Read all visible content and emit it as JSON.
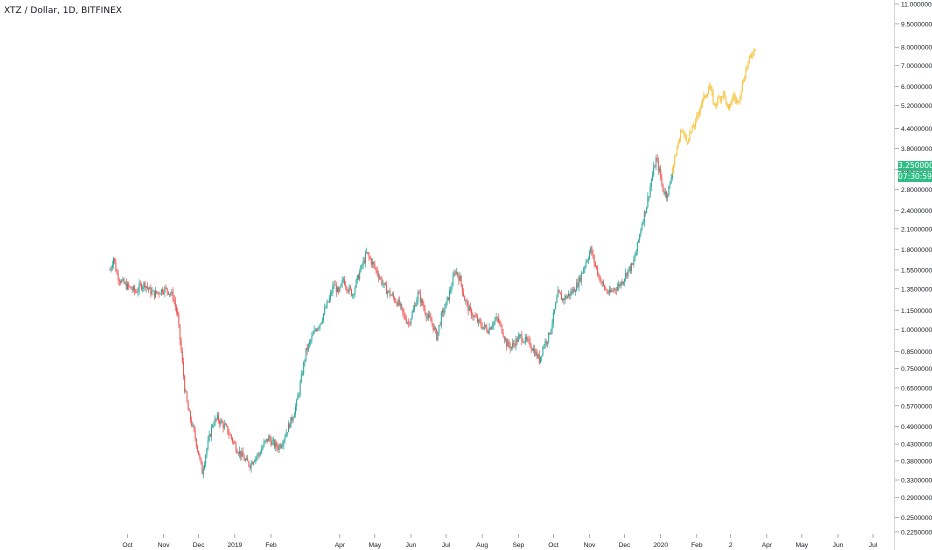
{
  "chart_data": {
    "type": "candlestick",
    "title": "XTZ / Dollar, 1D, BITFINEX",
    "y_scale": "log",
    "y_ticks": [
      0.225,
      0.25,
      0.29,
      0.33,
      0.38,
      0.43,
      0.49,
      0.57,
      0.65,
      0.75,
      0.85,
      1.0,
      1.15,
      1.35,
      1.55,
      1.8,
      2.1,
      2.4,
      2.8,
      3.25,
      3.8,
      4.4,
      5.2,
      6.0,
      7.0,
      8.0,
      9.5,
      11.0
    ],
    "y_tick_labels": [
      "0.22500000",
      "0.25000000",
      "0.29000000",
      "0.33000000",
      "0.38000000",
      "0.43000000",
      "0.49000000",
      "0.57000000",
      "0.65000000",
      "0.75000000",
      "0.85000000",
      "1.00000000",
      "1.15000000",
      "1.35000000",
      "1.55000000",
      "1.80000000",
      "2.10000000",
      "2.40000000",
      "2.80000000",
      "3.25000000",
      "3.80000000",
      "4.40000000",
      "5.20000000",
      "6.00000000",
      "7.00000000",
      "8.00000000",
      "9.50000000",
      "11.00000000"
    ],
    "x_ticks": [
      "Oct",
      "Nov",
      "Dec",
      "2019",
      "Feb",
      "Apr",
      "May",
      "Jun",
      "Jul",
      "Aug",
      "Sep",
      "Oct",
      "Nov",
      "Dec",
      "2020",
      "Feb",
      "2",
      "Apr",
      "May",
      "Jun",
      "Jul"
    ],
    "x_tick_days": [
      15,
      46,
      76,
      107,
      138,
      197,
      227,
      258,
      288,
      319,
      350,
      380,
      411,
      441,
      472,
      503,
      532,
      563,
      593,
      624,
      654
    ],
    "price_series": [
      {
        "d": 0,
        "v": 1.55
      },
      {
        "d": 3,
        "v": 1.7
      },
      {
        "d": 6,
        "v": 1.5
      },
      {
        "d": 10,
        "v": 1.42
      },
      {
        "d": 14,
        "v": 1.38
      },
      {
        "d": 18,
        "v": 1.35
      },
      {
        "d": 22,
        "v": 1.32
      },
      {
        "d": 26,
        "v": 1.38
      },
      {
        "d": 30,
        "v": 1.4
      },
      {
        "d": 34,
        "v": 1.33
      },
      {
        "d": 38,
        "v": 1.3
      },
      {
        "d": 42,
        "v": 1.32
      },
      {
        "d": 46,
        "v": 1.35
      },
      {
        "d": 50,
        "v": 1.33
      },
      {
        "d": 54,
        "v": 1.28
      },
      {
        "d": 58,
        "v": 1.1
      },
      {
        "d": 61,
        "v": 0.85
      },
      {
        "d": 64,
        "v": 0.65
      },
      {
        "d": 67,
        "v": 0.55
      },
      {
        "d": 70,
        "v": 0.5
      },
      {
        "d": 73,
        "v": 0.45
      },
      {
        "d": 76,
        "v": 0.4
      },
      {
        "d": 79,
        "v": 0.35
      },
      {
        "d": 82,
        "v": 0.4
      },
      {
        "d": 85,
        "v": 0.45
      },
      {
        "d": 88,
        "v": 0.5
      },
      {
        "d": 92,
        "v": 0.52
      },
      {
        "d": 96,
        "v": 0.5
      },
      {
        "d": 100,
        "v": 0.48
      },
      {
        "d": 104,
        "v": 0.45
      },
      {
        "d": 108,
        "v": 0.42
      },
      {
        "d": 112,
        "v": 0.4
      },
      {
        "d": 116,
        "v": 0.38
      },
      {
        "d": 120,
        "v": 0.37
      },
      {
        "d": 124,
        "v": 0.39
      },
      {
        "d": 128,
        "v": 0.4
      },
      {
        "d": 132,
        "v": 0.43
      },
      {
        "d": 136,
        "v": 0.45
      },
      {
        "d": 140,
        "v": 0.43
      },
      {
        "d": 144,
        "v": 0.42
      },
      {
        "d": 148,
        "v": 0.44
      },
      {
        "d": 152,
        "v": 0.48
      },
      {
        "d": 156,
        "v": 0.52
      },
      {
        "d": 160,
        "v": 0.58
      },
      {
        "d": 164,
        "v": 0.7
      },
      {
        "d": 168,
        "v": 0.85
      },
      {
        "d": 172,
        "v": 0.92
      },
      {
        "d": 176,
        "v": 1.0
      },
      {
        "d": 180,
        "v": 1.05
      },
      {
        "d": 184,
        "v": 1.15
      },
      {
        "d": 188,
        "v": 1.25
      },
      {
        "d": 192,
        "v": 1.4
      },
      {
        "d": 196,
        "v": 1.3
      },
      {
        "d": 200,
        "v": 1.45
      },
      {
        "d": 204,
        "v": 1.35
      },
      {
        "d": 208,
        "v": 1.3
      },
      {
        "d": 212,
        "v": 1.45
      },
      {
        "d": 216,
        "v": 1.6
      },
      {
        "d": 220,
        "v": 1.75
      },
      {
        "d": 224,
        "v": 1.65
      },
      {
        "d": 228,
        "v": 1.55
      },
      {
        "d": 232,
        "v": 1.45
      },
      {
        "d": 236,
        "v": 1.35
      },
      {
        "d": 240,
        "v": 1.3
      },
      {
        "d": 244,
        "v": 1.25
      },
      {
        "d": 248,
        "v": 1.2
      },
      {
        "d": 252,
        "v": 1.1
      },
      {
        "d": 256,
        "v": 1.05
      },
      {
        "d": 260,
        "v": 1.15
      },
      {
        "d": 264,
        "v": 1.3
      },
      {
        "d": 268,
        "v": 1.2
      },
      {
        "d": 272,
        "v": 1.1
      },
      {
        "d": 276,
        "v": 1.05
      },
      {
        "d": 280,
        "v": 0.95
      },
      {
        "d": 284,
        "v": 1.1
      },
      {
        "d": 288,
        "v": 1.2
      },
      {
        "d": 292,
        "v": 1.35
      },
      {
        "d": 296,
        "v": 1.55
      },
      {
        "d": 300,
        "v": 1.45
      },
      {
        "d": 304,
        "v": 1.25
      },
      {
        "d": 308,
        "v": 1.15
      },
      {
        "d": 312,
        "v": 1.1
      },
      {
        "d": 316,
        "v": 1.05
      },
      {
        "d": 320,
        "v": 1.02
      },
      {
        "d": 324,
        "v": 1.0
      },
      {
        "d": 328,
        "v": 1.05
      },
      {
        "d": 332,
        "v": 1.08
      },
      {
        "d": 336,
        "v": 1.0
      },
      {
        "d": 340,
        "v": 0.9
      },
      {
        "d": 344,
        "v": 0.88
      },
      {
        "d": 348,
        "v": 0.92
      },
      {
        "d": 352,
        "v": 0.95
      },
      {
        "d": 356,
        "v": 0.92
      },
      {
        "d": 360,
        "v": 0.9
      },
      {
        "d": 364,
        "v": 0.85
      },
      {
        "d": 368,
        "v": 0.8
      },
      {
        "d": 372,
        "v": 0.9
      },
      {
        "d": 376,
        "v": 0.95
      },
      {
        "d": 380,
        "v": 1.1
      },
      {
        "d": 384,
        "v": 1.3
      },
      {
        "d": 388,
        "v": 1.25
      },
      {
        "d": 392,
        "v": 1.28
      },
      {
        "d": 396,
        "v": 1.32
      },
      {
        "d": 400,
        "v": 1.38
      },
      {
        "d": 404,
        "v": 1.5
      },
      {
        "d": 408,
        "v": 1.65
      },
      {
        "d": 412,
        "v": 1.8
      },
      {
        "d": 416,
        "v": 1.6
      },
      {
        "d": 420,
        "v": 1.45
      },
      {
        "d": 424,
        "v": 1.35
      },
      {
        "d": 428,
        "v": 1.3
      },
      {
        "d": 432,
        "v": 1.35
      },
      {
        "d": 436,
        "v": 1.38
      },
      {
        "d": 440,
        "v": 1.45
      },
      {
        "d": 444,
        "v": 1.55
      },
      {
        "d": 448,
        "v": 1.6
      },
      {
        "d": 452,
        "v": 1.85
      },
      {
        "d": 456,
        "v": 2.2
      },
      {
        "d": 460,
        "v": 2.5
      },
      {
        "d": 464,
        "v": 3.0
      },
      {
        "d": 468,
        "v": 3.5
      },
      {
        "d": 471,
        "v": 3.2
      },
      {
        "d": 474,
        "v": 2.8
      },
      {
        "d": 477,
        "v": 2.7
      },
      {
        "d": 480,
        "v": 2.9
      },
      {
        "d": 482,
        "v": 3.25
      }
    ],
    "projection_series": [
      {
        "d": 482,
        "v": 3.25
      },
      {
        "d": 486,
        "v": 3.8
      },
      {
        "d": 490,
        "v": 4.4
      },
      {
        "d": 494,
        "v": 4.0
      },
      {
        "d": 498,
        "v": 4.3
      },
      {
        "d": 502,
        "v": 4.6
      },
      {
        "d": 506,
        "v": 5.2
      },
      {
        "d": 510,
        "v": 5.6
      },
      {
        "d": 514,
        "v": 6.0
      },
      {
        "d": 518,
        "v": 5.2
      },
      {
        "d": 522,
        "v": 5.5
      },
      {
        "d": 526,
        "v": 5.7
      },
      {
        "d": 530,
        "v": 5.0
      },
      {
        "d": 534,
        "v": 5.6
      },
      {
        "d": 538,
        "v": 5.3
      },
      {
        "d": 542,
        "v": 6.1
      },
      {
        "d": 546,
        "v": 7.0
      },
      {
        "d": 550,
        "v": 7.6
      },
      {
        "d": 553,
        "v": 8.0
      }
    ],
    "current_price_label": "3.25000000",
    "countdown_label": "07:30:59",
    "colors": {
      "up": "#26a69a",
      "down": "#ef5350",
      "projection": "#f5c542",
      "badge": "#2ebd85"
    }
  }
}
